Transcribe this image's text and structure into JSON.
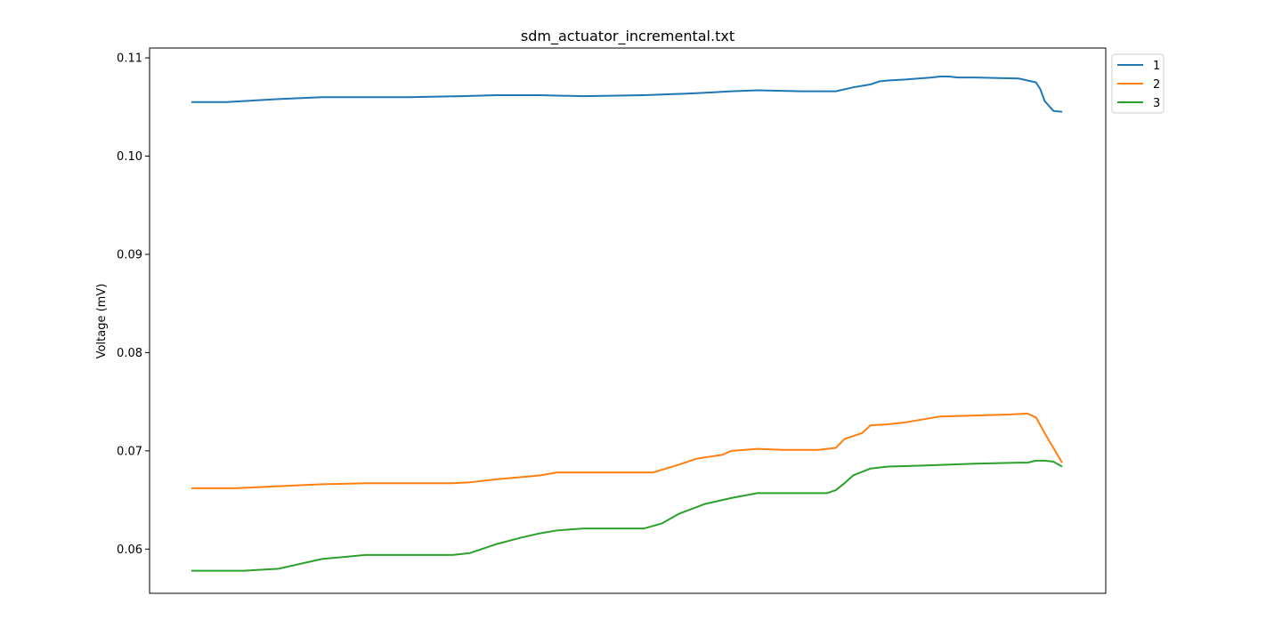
{
  "chart_data": {
    "type": "line",
    "title": "sdm_actuator_incremental.txt",
    "xlabel": "",
    "ylabel": "Voltage (mV)",
    "ylim": [
      0.0555,
      0.111
    ],
    "x_ticks_visible": false,
    "y_ticks": [
      "0.06",
      "0.07",
      "0.08",
      "0.09",
      "0.10",
      "0.11"
    ],
    "y_tick_values": [
      0.06,
      0.07,
      0.08,
      0.09,
      0.1,
      0.11
    ],
    "grid": false,
    "legend": "outside-top-right",
    "x_range": [
      0,
      1000
    ],
    "series": [
      {
        "name": "1",
        "color": "#1f77b4",
        "x": [
          0,
          40,
          80,
          100,
          150,
          200,
          250,
          310,
          350,
          400,
          450,
          520,
          580,
          600,
          620,
          650,
          700,
          740,
          760,
          780,
          790,
          800,
          820,
          850,
          860,
          870,
          880,
          900,
          950,
          970,
          975,
          980,
          990,
          1000
        ],
        "y": [
          0.1055,
          0.1055,
          0.1057,
          0.1058,
          0.106,
          0.106,
          0.106,
          0.1061,
          0.1062,
          0.1062,
          0.1061,
          0.1062,
          0.1064,
          0.1065,
          0.1066,
          0.1067,
          0.1066,
          0.1066,
          0.107,
          0.1073,
          0.1076,
          0.1077,
          0.1078,
          0.108,
          0.1081,
          0.1081,
          0.108,
          0.108,
          0.1079,
          0.1075,
          0.1068,
          0.1056,
          0.1046,
          0.1045
        ]
      },
      {
        "name": "2",
        "color": "#ff7f0e",
        "x": [
          0,
          50,
          100,
          150,
          200,
          250,
          300,
          320,
          350,
          400,
          420,
          450,
          490,
          530,
          560,
          580,
          610,
          620,
          650,
          680,
          700,
          720,
          740,
          750,
          770,
          780,
          800,
          820,
          860,
          900,
          940,
          960,
          970,
          980,
          1000
        ],
        "y": [
          0.0662,
          0.0662,
          0.0664,
          0.0666,
          0.0667,
          0.0667,
          0.0667,
          0.0668,
          0.0671,
          0.0675,
          0.0678,
          0.0678,
          0.0678,
          0.0678,
          0.0686,
          0.0692,
          0.0696,
          0.07,
          0.0702,
          0.0701,
          0.0701,
          0.0701,
          0.0703,
          0.0712,
          0.0718,
          0.0726,
          0.0727,
          0.0729,
          0.0735,
          0.0736,
          0.0737,
          0.0738,
          0.0734,
          0.0718,
          0.0688
        ]
      },
      {
        "name": "3",
        "color": "#2ca02c",
        "x": [
          0,
          60,
          100,
          150,
          200,
          250,
          300,
          320,
          350,
          380,
          400,
          420,
          450,
          490,
          520,
          540,
          560,
          590,
          620,
          650,
          700,
          730,
          740,
          750,
          760,
          780,
          800,
          840,
          900,
          950,
          960,
          970,
          980,
          990,
          1000
        ],
        "y": [
          0.0578,
          0.0578,
          0.058,
          0.059,
          0.0594,
          0.0594,
          0.0594,
          0.0596,
          0.0605,
          0.0612,
          0.0616,
          0.0619,
          0.0621,
          0.0621,
          0.0621,
          0.0626,
          0.0636,
          0.0646,
          0.0652,
          0.0657,
          0.0657,
          0.0657,
          0.066,
          0.0667,
          0.0675,
          0.0682,
          0.0684,
          0.0685,
          0.0687,
          0.0688,
          0.0688,
          0.069,
          0.069,
          0.0689,
          0.0684
        ]
      }
    ]
  }
}
